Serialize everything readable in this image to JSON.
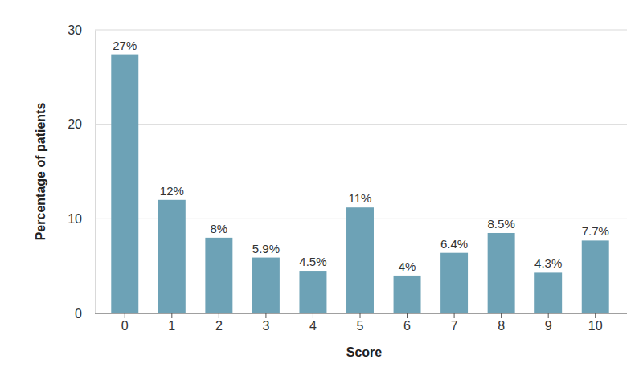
{
  "chart_data": {
    "type": "bar",
    "x_label": "Score",
    "y_label": "Percentage of patients",
    "categories": [
      "0",
      "1",
      "2",
      "3",
      "4",
      "5",
      "6",
      "7",
      "8",
      "9",
      "10"
    ],
    "values": [
      27.4,
      12,
      8,
      5.9,
      4.5,
      11.2,
      4,
      6.4,
      8.5,
      4.3,
      7.7
    ],
    "value_labels": [
      "27%",
      "12%",
      "8%",
      "5.9%",
      "4.5%",
      "11%",
      "4%",
      "6.4%",
      "8.5%",
      "4.3%",
      "7.7%"
    ],
    "data_labels": true,
    "color": "#6da2b6",
    "ylim": [
      0,
      30
    ],
    "yticks": [
      0,
      10,
      20,
      30
    ],
    "grid": true
  }
}
